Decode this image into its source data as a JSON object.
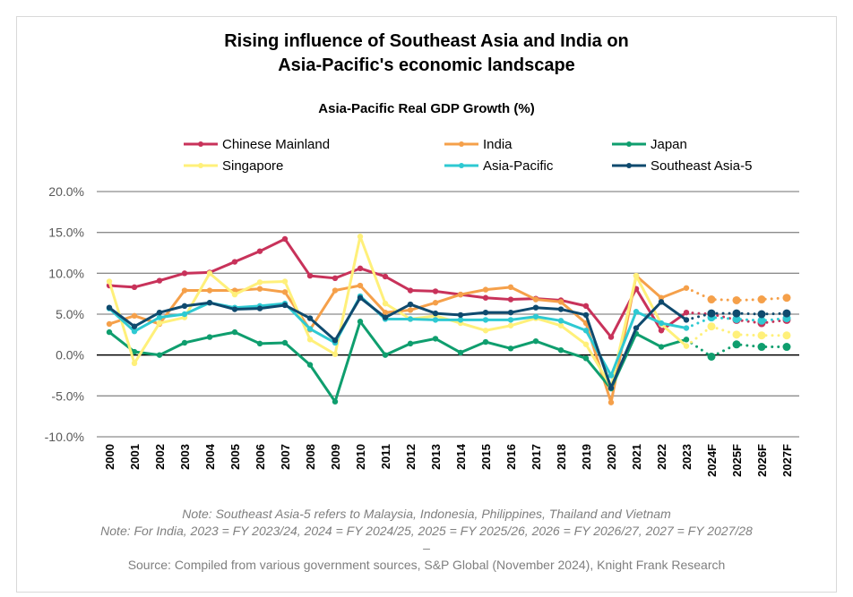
{
  "title_line1": "Rising influence of Southeast Asia and India on",
  "title_line2": "Asia-Pacific's economic landscape",
  "notes": {
    "note1": "Note: Southeast Asia-5 refers to Malaysia, Indonesia, Philippines, Thailand and Vietnam",
    "note2": "Note: For India, 2023 = FY 2023/24, 2024 = FY 2024/25, 2025 = FY 2025/26, 2026 = FY 2026/27, 2027 = FY 2027/28",
    "dash": "–",
    "source": "Source: Compiled from various government sources, S&P Global (November 2024), Knight Frank Research"
  },
  "chart_data": {
    "type": "line",
    "title": "Asia-Pacific Real GDP Growth (%)",
    "legend_position": "top",
    "grid": true,
    "ylim": [
      -10,
      20
    ],
    "yticks": [
      "-10.0%",
      "-5.0%",
      "0.0%",
      "5.0%",
      "10.0%",
      "15.0%",
      "20.0%"
    ],
    "ytick_values": [
      -10,
      -5,
      0,
      5,
      10,
      15,
      20
    ],
    "categories": [
      "2000",
      "2001",
      "2002",
      "2003",
      "2004",
      "2005",
      "2006",
      "2007",
      "2008",
      "2009",
      "2010",
      "2011",
      "2012",
      "2013",
      "2014",
      "2015",
      "2016",
      "2017",
      "2018",
      "2019",
      "2020",
      "2021",
      "2022",
      "2023",
      "2024F",
      "2025F",
      "2026F",
      "2027F"
    ],
    "forecast_from": "2024F",
    "series": [
      {
        "name": "Chinese Mainland",
        "color": "#c8325a",
        "values": [
          8.5,
          8.3,
          9.1,
          10.0,
          10.1,
          11.4,
          12.7,
          14.2,
          9.7,
          9.4,
          10.6,
          9.6,
          7.9,
          7.8,
          7.4,
          7.0,
          6.8,
          6.9,
          6.7,
          6.0,
          2.2,
          8.1,
          3.0,
          5.2,
          5.0,
          4.3,
          3.9,
          4.3
        ]
      },
      {
        "name": "India",
        "color": "#f5a04a",
        "values": [
          3.8,
          4.8,
          3.8,
          7.9,
          7.9,
          7.9,
          8.1,
          7.7,
          3.1,
          7.9,
          8.5,
          5.2,
          5.5,
          6.4,
          7.4,
          8.0,
          8.3,
          6.8,
          6.5,
          3.9,
          -5.8,
          9.7,
          7.0,
          8.2,
          6.8,
          6.7,
          6.8,
          7.0
        ]
      },
      {
        "name": "Japan",
        "color": "#0f9e6e",
        "values": [
          2.8,
          0.4,
          0.0,
          1.5,
          2.2,
          2.8,
          1.4,
          1.5,
          -1.2,
          -5.7,
          4.1,
          0.0,
          1.4,
          2.0,
          0.3,
          1.6,
          0.8,
          1.7,
          0.6,
          -0.4,
          -4.1,
          2.6,
          1.0,
          1.9,
          -0.2,
          1.3,
          1.0,
          1.0
        ]
      },
      {
        "name": "Singapore",
        "color": "#fff07a",
        "values": [
          9.0,
          -1.0,
          3.9,
          4.6,
          10.0,
          7.4,
          8.9,
          9.0,
          1.9,
          0.1,
          14.5,
          6.3,
          4.4,
          4.8,
          3.9,
          3.0,
          3.6,
          4.5,
          3.6,
          1.3,
          -3.9,
          9.7,
          3.8,
          1.1,
          3.5,
          2.5,
          2.4,
          2.4
        ]
      },
      {
        "name": "Asia-Pacific",
        "color": "#2ec9d2",
        "values": [
          5.7,
          2.9,
          4.6,
          5.0,
          6.4,
          5.8,
          6.0,
          6.3,
          3.2,
          1.5,
          7.2,
          4.4,
          4.4,
          4.3,
          4.3,
          4.3,
          4.3,
          4.7,
          4.2,
          3.0,
          -2.5,
          5.3,
          3.9,
          3.3,
          4.6,
          4.4,
          4.2,
          4.5
        ]
      },
      {
        "name": "Southeast Asia-5",
        "color": "#0f4a6e",
        "values": [
          5.8,
          3.5,
          5.2,
          6.0,
          6.4,
          5.6,
          5.7,
          6.1,
          4.5,
          1.8,
          7.0,
          4.6,
          6.2,
          5.1,
          4.9,
          5.2,
          5.2,
          5.8,
          5.6,
          4.9,
          -4.0,
          3.3,
          6.5,
          4.3,
          5.1,
          5.1,
          5.0,
          5.1
        ]
      }
    ]
  }
}
